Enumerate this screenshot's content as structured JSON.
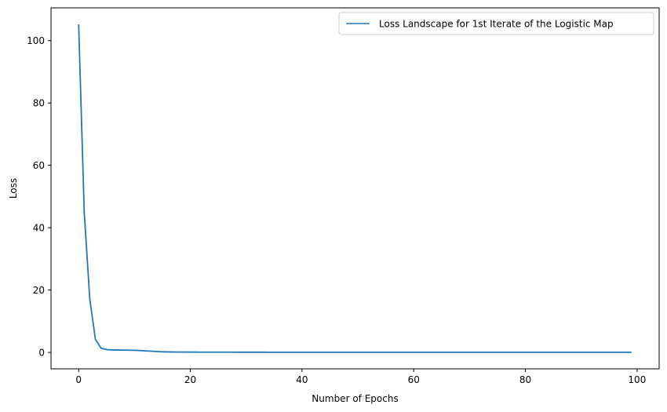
{
  "chart_data": {
    "type": "line",
    "xlabel": "Number of Epochs",
    "ylabel": "Loss",
    "xlim": [
      -4.95,
      103.95
    ],
    "ylim": [
      -5.26,
      110.5
    ],
    "xticks": [
      0,
      20,
      40,
      60,
      80,
      100
    ],
    "yticks": [
      0,
      20,
      40,
      60,
      80,
      100
    ],
    "grid": false,
    "legend_position": "top-right",
    "colors": {
      "series": "#1f77b4",
      "axis": "#000000",
      "legend_border": "#cccccc"
    },
    "series": [
      {
        "name": "Loss Landscape for 1st Iterate of the Logistic Map",
        "x": [
          0,
          1,
          2,
          3,
          4,
          5,
          6,
          7,
          8,
          9,
          10,
          11,
          12,
          13,
          14,
          15,
          16,
          17,
          18,
          19,
          20,
          21,
          22,
          23,
          24,
          25,
          26,
          27,
          28,
          29,
          30,
          31,
          32,
          33,
          34,
          35,
          36,
          37,
          38,
          39,
          40,
          41,
          42,
          43,
          44,
          45,
          46,
          47,
          48,
          49,
          50,
          51,
          52,
          53,
          54,
          55,
          56,
          57,
          58,
          59,
          60,
          61,
          62,
          63,
          64,
          65,
          66,
          67,
          68,
          69,
          70,
          71,
          72,
          73,
          74,
          75,
          76,
          77,
          78,
          79,
          80,
          81,
          82,
          83,
          84,
          85,
          86,
          87,
          88,
          89,
          90,
          91,
          92,
          93,
          94,
          95,
          96,
          97,
          98,
          99
        ],
        "y": [
          105.2,
          45.0,
          17.0,
          4.2,
          1.4,
          0.9,
          0.8,
          0.8,
          0.75,
          0.72,
          0.68,
          0.6,
          0.5,
          0.4,
          0.3,
          0.22,
          0.17,
          0.14,
          0.12,
          0.11,
          0.1,
          0.1,
          0.09,
          0.09,
          0.09,
          0.08,
          0.08,
          0.08,
          0.08,
          0.07,
          0.07,
          0.07,
          0.07,
          0.07,
          0.06,
          0.06,
          0.06,
          0.06,
          0.06,
          0.06,
          0.06,
          0.06,
          0.06,
          0.06,
          0.06,
          0.06,
          0.06,
          0.06,
          0.06,
          0.06,
          0.06,
          0.06,
          0.06,
          0.06,
          0.06,
          0.06,
          0.06,
          0.06,
          0.06,
          0.06,
          0.06,
          0.06,
          0.06,
          0.06,
          0.06,
          0.06,
          0.06,
          0.06,
          0.06,
          0.06,
          0.06,
          0.06,
          0.06,
          0.06,
          0.06,
          0.06,
          0.06,
          0.06,
          0.06,
          0.06,
          0.06,
          0.06,
          0.06,
          0.06,
          0.06,
          0.06,
          0.06,
          0.06,
          0.06,
          0.06,
          0.06,
          0.06,
          0.06,
          0.06,
          0.06,
          0.06,
          0.06,
          0.06,
          0.06,
          0.06
        ]
      }
    ]
  }
}
